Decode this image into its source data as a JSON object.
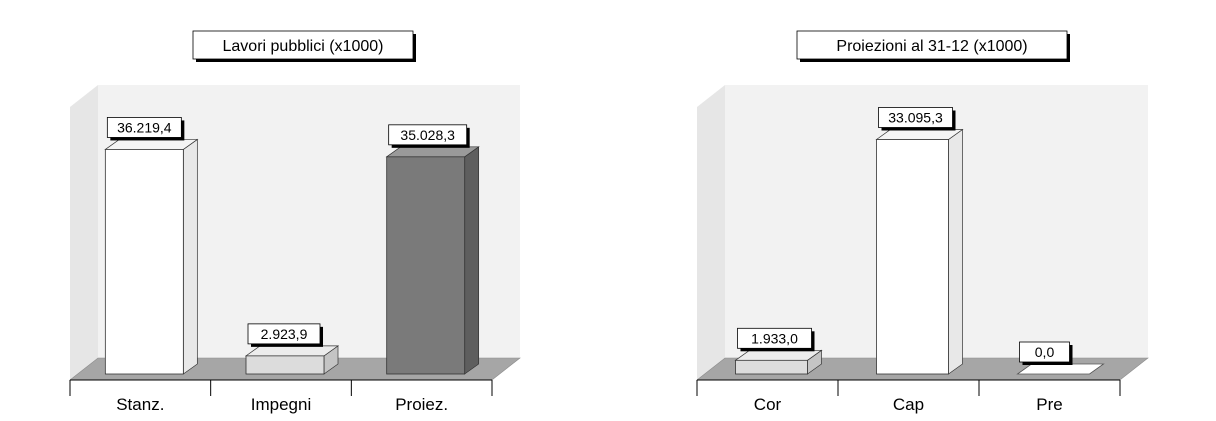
{
  "colors": {
    "floor": "#a6a6a6",
    "wall": "#e6e6e6",
    "bar_white_front": "#ffffff",
    "bar_white_side": "#e8e8e8",
    "bar_white_top": "#f4f4f4",
    "bar_light_front": "#dcdcdc",
    "bar_dark_front": "#7a7a7a",
    "text": "#000000"
  },
  "chart_data": [
    {
      "type": "bar",
      "title": "Lavori pubblici (x1000)",
      "categories": [
        "Stanz.",
        "Impegni",
        "Proiez."
      ],
      "values": [
        36219.4,
        2923.9,
        35028.3
      ],
      "value_labels": [
        "36.219,4",
        "2.923,9",
        "35.028,3"
      ],
      "bar_colors": [
        "white",
        "light",
        "dark"
      ],
      "ylim": [
        0,
        40000
      ]
    },
    {
      "type": "bar",
      "title": "Proiezioni al 31-12 (x1000)",
      "categories": [
        "Cor",
        "Cap",
        "Pre"
      ],
      "values": [
        1933.0,
        33095.3,
        0.0
      ],
      "value_labels": [
        "1.933,0",
        "33.095,3",
        "0,0"
      ],
      "bar_colors": [
        "light",
        "white",
        "white"
      ],
      "ylim": [
        0,
        35000
      ]
    }
  ]
}
